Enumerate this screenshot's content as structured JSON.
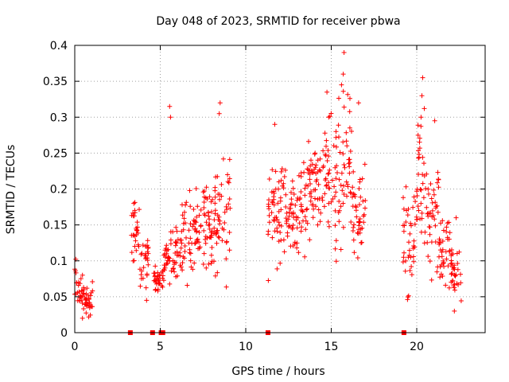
{
  "chart_data": {
    "type": "scatter",
    "title": "Day 048 of 2023, SRMTID for receiver pbwa",
    "xlabel": "GPS time / hours",
    "ylabel": "SRMTID / TECUs",
    "xlim": [
      0,
      24
    ],
    "ylim": [
      0,
      0.4
    ],
    "xticks": [
      0,
      5,
      10,
      15,
      20
    ],
    "xtick_labels": [
      "0",
      "5",
      "10",
      "15",
      "20"
    ],
    "yticks": [
      0,
      0.05,
      0.1,
      0.15,
      0.2,
      0.25,
      0.3,
      0.35,
      0.4
    ],
    "ytick_labels": [
      "0",
      "0.05",
      "0.1",
      "0.15",
      "0.2",
      "0.25",
      "0.3",
      "0.35",
      "0.4"
    ],
    "grid": true,
    "marker": "plus",
    "color": "#ff0000",
    "zero_points": [
      3.25,
      4.55,
      5.05,
      5.15,
      11.3,
      19.25
    ],
    "clusters": [
      {
        "x_start": 0.0,
        "x_end": 0.15,
        "y_center": 0.075,
        "y_spread": 0.02
      },
      {
        "x_start": 0.15,
        "x_end": 0.5,
        "y_center": 0.055,
        "y_spread": 0.015
      },
      {
        "x_start": 0.5,
        "x_end": 1.1,
        "y_center": 0.045,
        "y_spread": 0.015
      },
      {
        "x_start": 3.3,
        "x_end": 3.8,
        "y_center": 0.14,
        "y_spread": 0.025
      },
      {
        "x_start": 3.8,
        "x_end": 4.3,
        "y_center": 0.1,
        "y_spread": 0.03
      },
      {
        "x_start": 4.6,
        "x_end": 5.2,
        "y_center": 0.075,
        "y_spread": 0.012
      },
      {
        "x_start": 5.2,
        "x_end": 6.2,
        "y_center": 0.11,
        "y_spread": 0.03
      },
      {
        "x_start": 6.2,
        "x_end": 7.2,
        "y_center": 0.14,
        "y_spread": 0.035
      },
      {
        "x_start": 7.2,
        "x_end": 8.2,
        "y_center": 0.15,
        "y_spread": 0.04
      },
      {
        "x_start": 8.2,
        "x_end": 9.1,
        "y_center": 0.16,
        "y_spread": 0.05
      },
      {
        "x_start": 11.3,
        "x_end": 12.3,
        "y_center": 0.17,
        "y_spread": 0.05
      },
      {
        "x_start": 12.3,
        "x_end": 13.5,
        "y_center": 0.17,
        "y_spread": 0.04
      },
      {
        "x_start": 13.5,
        "x_end": 14.5,
        "y_center": 0.2,
        "y_spread": 0.04
      },
      {
        "x_start": 14.5,
        "x_end": 15.5,
        "y_center": 0.22,
        "y_spread": 0.06
      },
      {
        "x_start": 15.5,
        "x_end": 16.2,
        "y_center": 0.23,
        "y_spread": 0.07
      },
      {
        "x_start": 16.2,
        "x_end": 17.0,
        "y_center": 0.16,
        "y_spread": 0.04
      },
      {
        "x_start": 19.2,
        "x_end": 19.9,
        "y_center": 0.13,
        "y_spread": 0.05
      },
      {
        "x_start": 19.9,
        "x_end": 20.6,
        "y_center": 0.21,
        "y_spread": 0.06
      },
      {
        "x_start": 20.6,
        "x_end": 21.3,
        "y_center": 0.16,
        "y_spread": 0.05
      },
      {
        "x_start": 21.3,
        "x_end": 22.0,
        "y_center": 0.11,
        "y_spread": 0.03
      },
      {
        "x_start": 22.0,
        "x_end": 22.6,
        "y_center": 0.08,
        "y_spread": 0.025
      }
    ],
    "peak_points": [
      {
        "x": 15.75,
        "y": 0.39
      },
      {
        "x": 15.7,
        "y": 0.36
      },
      {
        "x": 15.6,
        "y": 0.345
      },
      {
        "x": 20.35,
        "y": 0.355
      },
      {
        "x": 20.3,
        "y": 0.33
      },
      {
        "x": 14.75,
        "y": 0.335
      },
      {
        "x": 16.6,
        "y": 0.32
      },
      {
        "x": 5.55,
        "y": 0.315
      },
      {
        "x": 5.6,
        "y": 0.3
      },
      {
        "x": 8.5,
        "y": 0.32
      },
      {
        "x": 8.45,
        "y": 0.305
      },
      {
        "x": 11.7,
        "y": 0.29
      },
      {
        "x": 21.05,
        "y": 0.295
      },
      {
        "x": 20.25,
        "y": 0.3
      },
      {
        "x": 14.85,
        "y": 0.3
      },
      {
        "x": 3.45,
        "y": 0.18
      },
      {
        "x": 4.2,
        "y": 0.045
      },
      {
        "x": 0.45,
        "y": 0.02
      },
      {
        "x": 22.3,
        "y": 0.16
      },
      {
        "x": 22.2,
        "y": 0.03
      }
    ]
  }
}
